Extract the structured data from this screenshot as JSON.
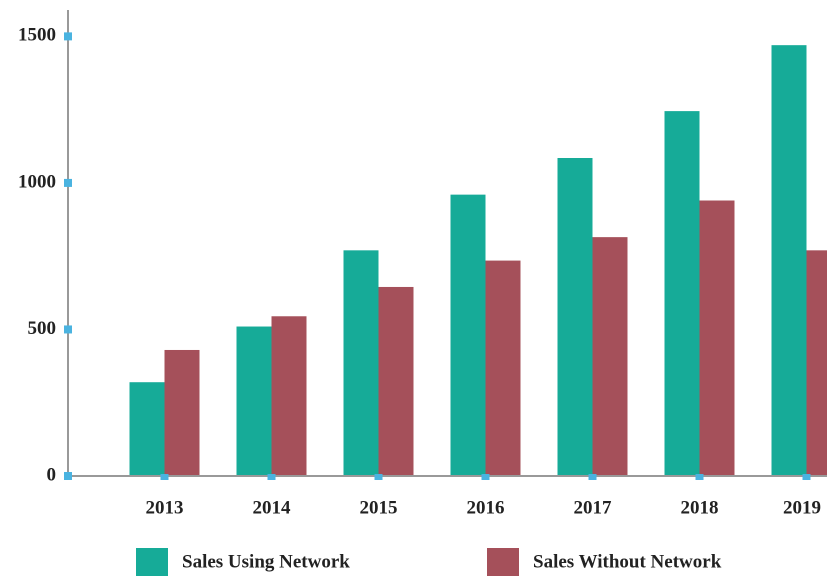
{
  "chart_data": {
    "type": "bar",
    "categories": [
      "2013",
      "2014",
      "2015",
      "2016",
      "2017",
      "2018",
      "2019"
    ],
    "series": [
      {
        "name": "Sales Using Network",
        "color": "#16ab98",
        "values": [
          320,
          510,
          770,
          960,
          1085,
          1245,
          1470
        ]
      },
      {
        "name": "Sales Without Network",
        "color": "#a5505a",
        "values": [
          430,
          545,
          645,
          735,
          815,
          940,
          770
        ]
      }
    ],
    "ylim": [
      0,
      1590
    ],
    "yticks": [
      0,
      500,
      1000,
      1500
    ],
    "grid": false,
    "legend": "bottom"
  }
}
